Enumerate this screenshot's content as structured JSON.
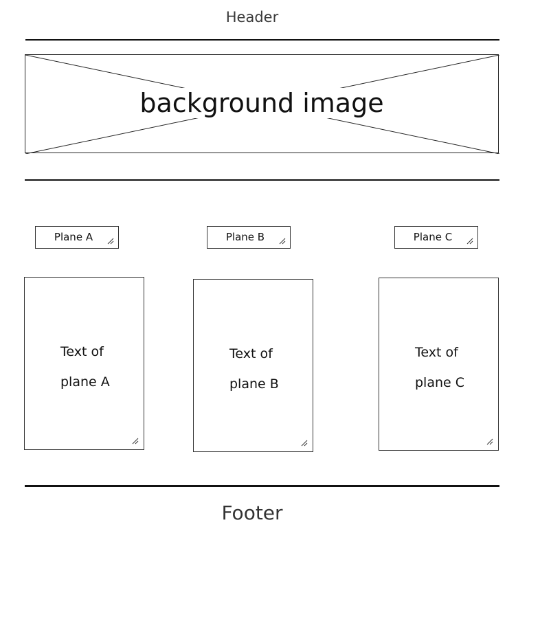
{
  "header": {
    "title": "Header"
  },
  "banner": {
    "label": "background image"
  },
  "planes": [
    {
      "input_label": "Plane A",
      "text_line1": "Text of",
      "text_line2": "plane A"
    },
    {
      "input_label": "Plane B",
      "text_line1": "Text of",
      "text_line2": "plane B"
    },
    {
      "input_label": "Plane C",
      "text_line1": "Text of",
      "text_line2": "plane C"
    }
  ],
  "footer": {
    "title": "Footer"
  },
  "icons": {
    "resize": "resize-grip-icon",
    "placeholder": "image-placeholder-cross-icon"
  }
}
